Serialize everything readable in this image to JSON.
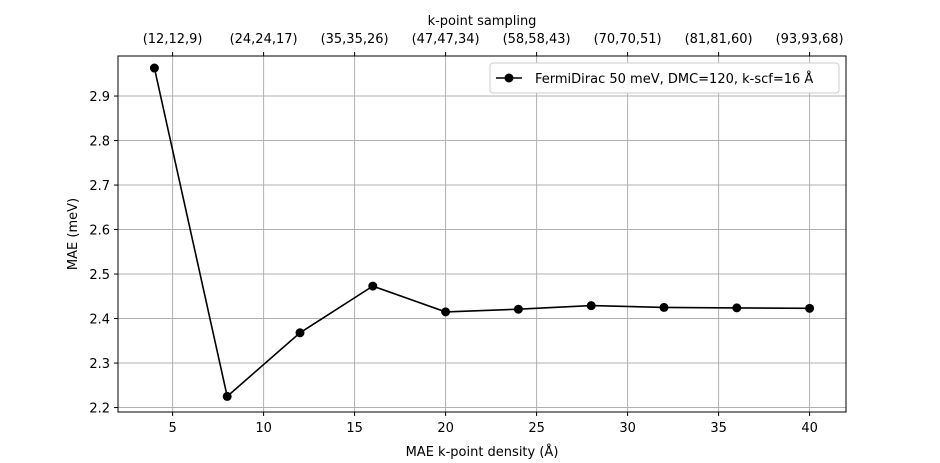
{
  "chart_data": {
    "type": "line",
    "xlabel": "MAE k-point density  (Å)",
    "ylabel": "MAE  (meV)",
    "top_xlabel": "k-point sampling",
    "xlim": [
      2,
      42
    ],
    "ylim": [
      2.19,
      2.99
    ],
    "xticks": [
      5,
      10,
      15,
      20,
      25,
      30,
      35,
      40
    ],
    "yticks": [
      2.2,
      2.3,
      2.4,
      2.5,
      2.6,
      2.7,
      2.8,
      2.9
    ],
    "top_ticks": [
      {
        "x": 5,
        "label": "(12,12,9)"
      },
      {
        "x": 10,
        "label": "(24,24,17)"
      },
      {
        "x": 15,
        "label": "(35,35,26)"
      },
      {
        "x": 20,
        "label": "(47,47,34)"
      },
      {
        "x": 25,
        "label": "(58,58,43)"
      },
      {
        "x": 30,
        "label": "(70,70,51)"
      },
      {
        "x": 35,
        "label": "(81,81,60)"
      },
      {
        "x": 40,
        "label": "(93,93,68)"
      }
    ],
    "grid": true,
    "legend_position": "top-right",
    "series": [
      {
        "name": "FermiDirac 50 meV, DMC=120, k-scf=16 Å",
        "color": "#000000",
        "marker": "circle",
        "x": [
          4,
          8,
          12,
          16,
          20,
          24,
          28,
          32,
          36,
          40
        ],
        "y": [
          2.963,
          2.225,
          2.368,
          2.473,
          2.415,
          2.421,
          2.429,
          2.425,
          2.424,
          2.423
        ]
      }
    ]
  }
}
